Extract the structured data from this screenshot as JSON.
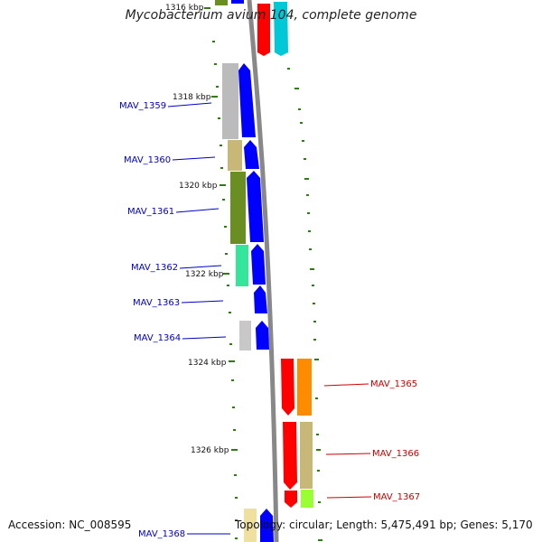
{
  "title": "Mycobacterium avium 104, complete genome",
  "footer": {
    "accession": "Accession: NC_008595",
    "summary": "Topology: circular; Length: 5,475,491 bp; Genes: 5,170"
  },
  "kbp_labels": [
    "1316 kbp",
    "1318 kbp",
    "1320 kbp",
    "1322 kbp",
    "1324 kbp",
    "1326 kbp"
  ],
  "genes_left": [
    {
      "id": "MAV_1359",
      "color": "#0000cc"
    },
    {
      "id": "MAV_1360",
      "color": "#0000cc"
    },
    {
      "id": "MAV_1361",
      "color": "#0000cc"
    },
    {
      "id": "MAV_1362",
      "color": "#0000cc"
    },
    {
      "id": "MAV_1363",
      "color": "#0000cc"
    },
    {
      "id": "MAV_1364",
      "color": "#0000cc"
    },
    {
      "id": "MAV_1368",
      "color": "#0000cc"
    }
  ],
  "genes_right": [
    {
      "id": "MAV_1365",
      "color": "#cc0000"
    },
    {
      "id": "MAV_1366",
      "color": "#cc0000"
    },
    {
      "id": "MAV_1367",
      "color": "#cc0000"
    }
  ],
  "colors": {
    "forward_strand": "#0000ff",
    "reverse_strand": "#ff0000",
    "backbone": "#888888",
    "tick": "#2e7d12"
  }
}
